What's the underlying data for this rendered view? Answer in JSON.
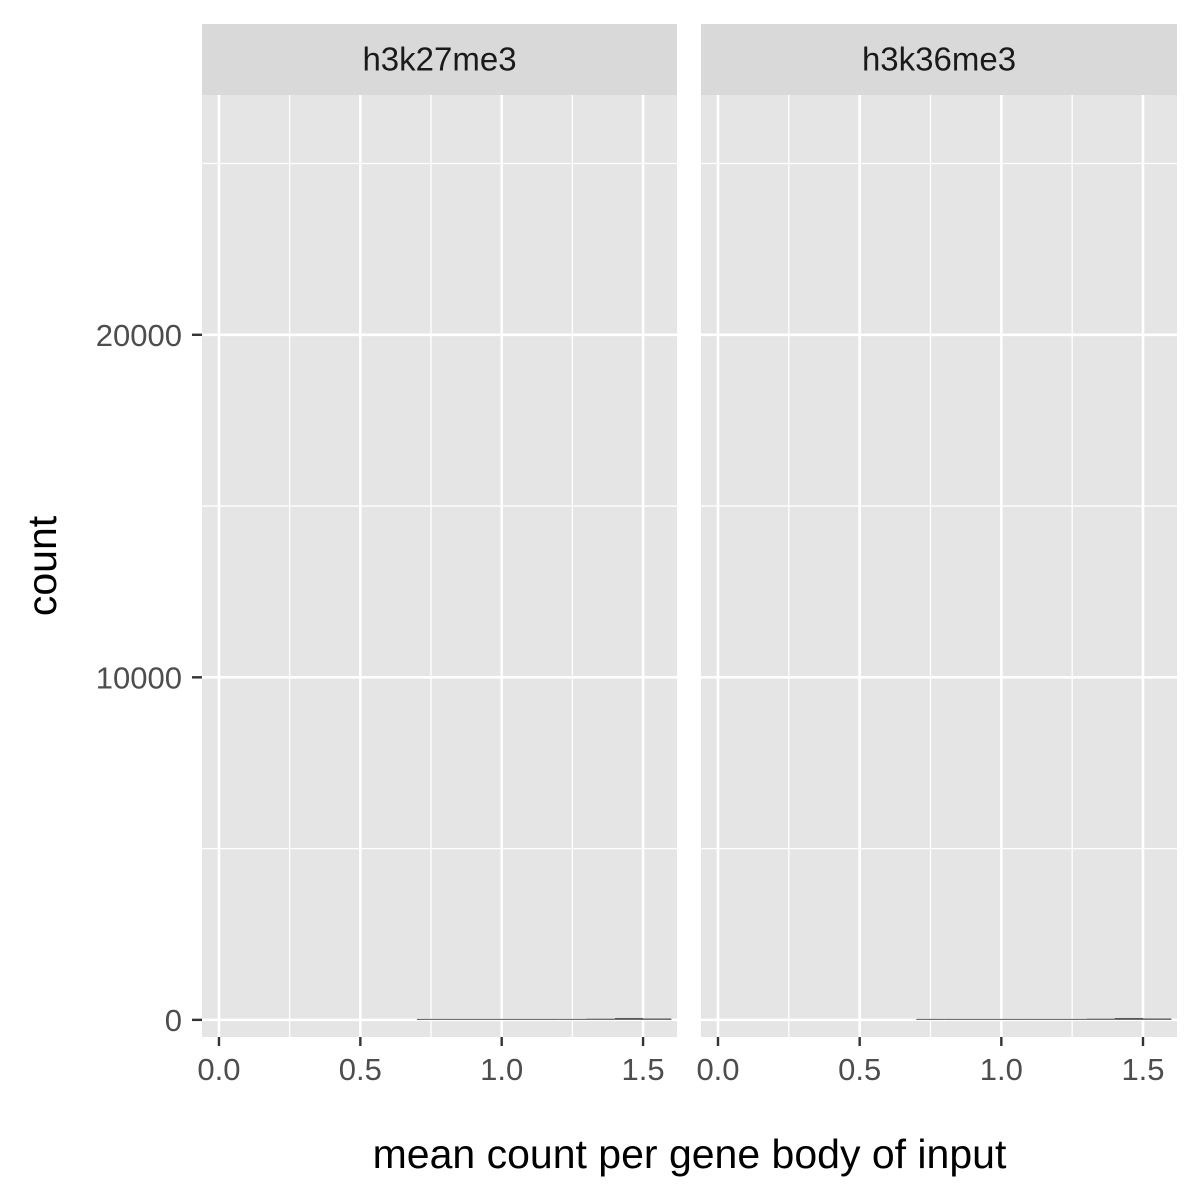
{
  "chart_data": {
    "type": "bar",
    "facet_by": "mark",
    "xlabel": "mean count per gene body of input",
    "ylabel": "count",
    "xlim": [
      -0.06,
      1.62
    ],
    "ylim": [
      -500,
      27000
    ],
    "x_ticks": [
      0.0,
      0.5,
      1.0,
      1.5
    ],
    "x_tick_labels": [
      "0.0",
      "0.5",
      "1.0",
      "1.5"
    ],
    "x_minor_ticks": [
      0.25,
      0.75,
      1.25
    ],
    "y_ticks": [
      0,
      10000,
      20000
    ],
    "y_tick_labels": [
      "0",
      "10000",
      "20000"
    ],
    "y_minor_ticks": [
      5000,
      15000,
      25000
    ],
    "grid": true,
    "bar_color": "#595959",
    "panel_background": "#e5e5e5",
    "strip_background": "#d9d9d9",
    "grid_color": "#ffffff",
    "panels": [
      {
        "name": "h3k27me3",
        "bins": [
          {
            "x": 0.75,
            "count": 2
          },
          {
            "x": 0.85,
            "count": 4
          },
          {
            "x": 0.95,
            "count": 6
          },
          {
            "x": 1.05,
            "count": 10
          },
          {
            "x": 1.15,
            "count": 15
          },
          {
            "x": 1.25,
            "count": 22
          },
          {
            "x": 1.35,
            "count": 35
          },
          {
            "x": 1.45,
            "count": 55
          },
          {
            "x": 1.55,
            "count": 40
          }
        ]
      },
      {
        "name": "h3k36me3",
        "bins": [
          {
            "x": 0.75,
            "count": 2
          },
          {
            "x": 0.85,
            "count": 4
          },
          {
            "x": 0.95,
            "count": 6
          },
          {
            "x": 1.05,
            "count": 10
          },
          {
            "x": 1.15,
            "count": 15
          },
          {
            "x": 1.25,
            "count": 22
          },
          {
            "x": 1.35,
            "count": 35
          },
          {
            "x": 1.45,
            "count": 55
          },
          {
            "x": 1.55,
            "count": 40
          }
        ]
      }
    ]
  }
}
